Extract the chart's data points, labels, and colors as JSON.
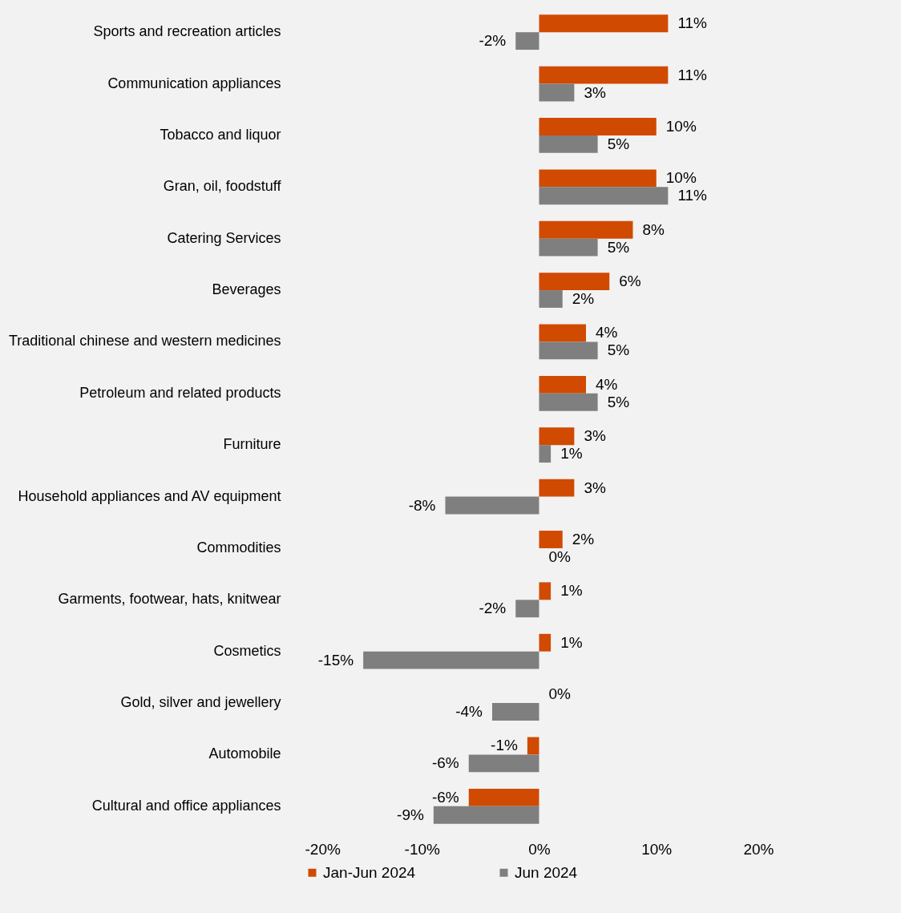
{
  "chart_data": {
    "type": "bar",
    "orientation": "horizontal",
    "categories": [
      "Sports and recreation articles",
      "Communication appliances",
      "Tobacco and liquor",
      "Gran, oil, foodstuff",
      "Catering Services",
      "Beverages",
      "Traditional chinese and western medicines",
      "Petroleum and related products",
      "Furniture",
      "Household appliances and AV equipment",
      "Commodities",
      "Garments, footwear, hats, knitwear",
      "Cosmetics",
      "Gold, silver and jewellery",
      "Automobile",
      "Cultural and office appliances"
    ],
    "series": [
      {
        "name": "Jan-Jun 2024",
        "color": "#d04a02",
        "values": [
          11,
          11,
          10,
          10,
          8,
          6,
          4,
          4,
          3,
          3,
          2,
          1,
          1,
          0,
          -1,
          -6
        ],
        "value_labels": [
          "11%",
          "11%",
          "10%",
          "10%",
          "8%",
          "6%",
          "4%",
          "4%",
          "3%",
          "3%",
          "2%",
          "1%",
          "1%",
          "0%",
          "-1%",
          "-6%"
        ]
      },
      {
        "name": "Jun 2024",
        "color": "#7f7f7f",
        "values": [
          -2,
          3,
          5,
          11,
          5,
          2,
          5,
          5,
          1,
          -8,
          0,
          -2,
          -15,
          -4,
          -6,
          -9
        ],
        "value_labels": [
          "-2%",
          "3%",
          "5%",
          "11%",
          "5%",
          "2%",
          "5%",
          "5%",
          "1%",
          "-8%",
          "0%",
          "-2%",
          "-15%",
          "-4%",
          "-6%",
          "-9%"
        ]
      }
    ],
    "xlim": [
      -20,
      20
    ],
    "xticks": [
      {
        "value": -20,
        "label": "-20%"
      },
      {
        "value": -10,
        "label": "-10%"
      },
      {
        "value": 0,
        "label": "0%"
      },
      {
        "value": 10,
        "label": "10%"
      },
      {
        "value": 20,
        "label": "20%"
      }
    ],
    "legend": "bottom"
  }
}
